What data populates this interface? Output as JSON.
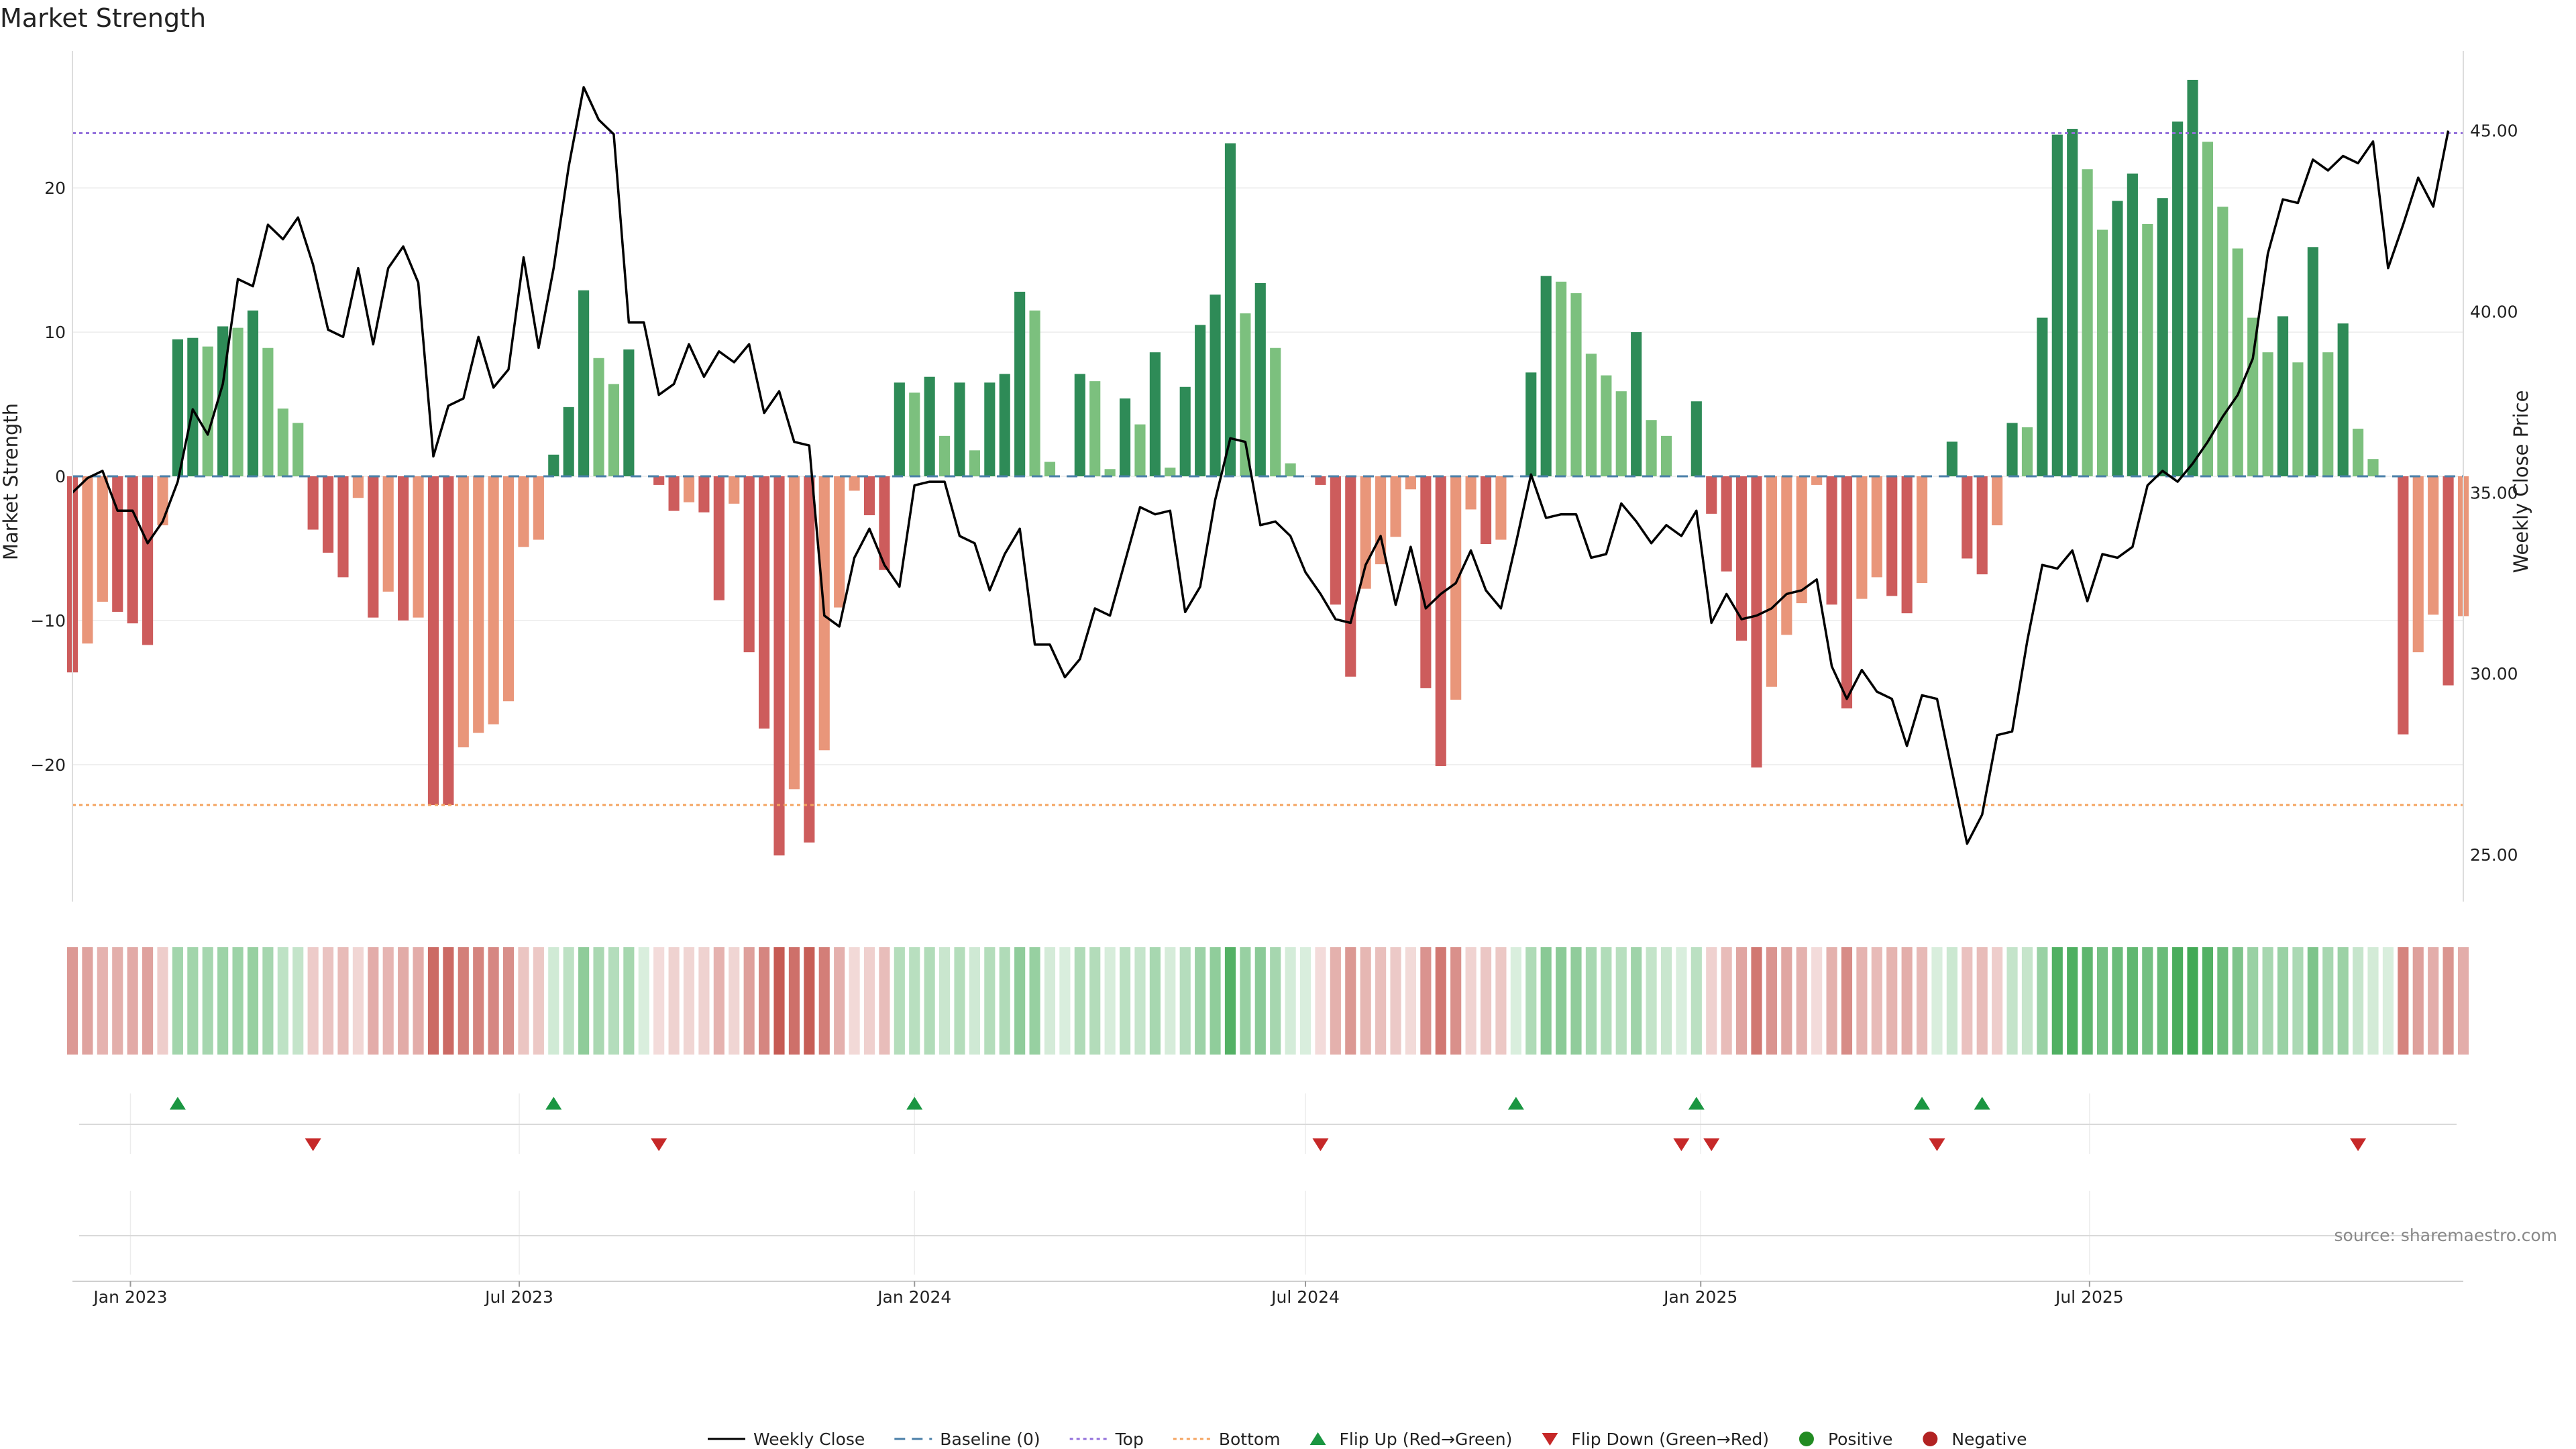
{
  "chart_data": {
    "type": "bar",
    "title": "Market Strength",
    "ylabel_left": "Market Strength",
    "ylabel_right": "Weekly Close Price",
    "source": "source: sharemaestro.com",
    "x_start": "2022-12-05",
    "x_step_days": 7,
    "ylim_left": [
      -29.5,
      29.5
    ],
    "ylim_right": [
      23.7,
      47.2
    ],
    "yticks_left": [
      {
        "value": 20,
        "label": "20"
      },
      {
        "value": 10,
        "label": "10"
      },
      {
        "value": 0,
        "label": "0"
      },
      {
        "value": -10,
        "label": "−10"
      },
      {
        "value": -20,
        "label": "−20"
      }
    ],
    "yticks_right": [
      {
        "value": 45,
        "label": "45.00"
      },
      {
        "value": 40,
        "label": "40.00"
      },
      {
        "value": 35,
        "label": "35.00"
      },
      {
        "value": 30,
        "label": "30.00"
      },
      {
        "value": 25,
        "label": "25.00"
      }
    ],
    "xticks": [
      {
        "date": "2023-01-01",
        "label": "Jan 2023"
      },
      {
        "date": "2023-07-01",
        "label": "Jul 2023"
      },
      {
        "date": "2024-01-01",
        "label": "Jan 2024"
      },
      {
        "date": "2024-07-01",
        "label": "Jul 2024"
      },
      {
        "date": "2025-01-01",
        "label": "Jan 2025"
      },
      {
        "date": "2025-07-01",
        "label": "Jul 2025"
      }
    ],
    "top_threshold": 23.8,
    "bottom_threshold": -22.8,
    "strength": [
      -13.6,
      -11.6,
      -8.7,
      -9.4,
      -10.2,
      -11.7,
      -3.4,
      9.5,
      9.6,
      9.0,
      10.4,
      10.3,
      11.5,
      8.9,
      4.7,
      3.7,
      -3.7,
      -5.3,
      -7.0,
      -1.5,
      -9.8,
      -8.0,
      -10.0,
      -9.8,
      -22.8,
      -22.8,
      -18.8,
      -17.8,
      -17.2,
      -15.6,
      -4.9,
      -4.4,
      1.5,
      4.8,
      12.9,
      8.2,
      6.4,
      8.8,
      0.0,
      -0.6,
      -2.4,
      -1.8,
      -2.5,
      -8.6,
      -1.9,
      -12.2,
      -17.5,
      -26.3,
      -21.7,
      -25.4,
      -19.0,
      -9.1,
      -1.0,
      -2.7,
      -6.5,
      6.5,
      5.8,
      6.9,
      2.8,
      6.5,
      1.8,
      6.5,
      7.1,
      12.8,
      11.5,
      1.0,
      0.0,
      7.1,
      6.6,
      0.5,
      5.4,
      3.6,
      8.6,
      0.6,
      6.2,
      10.5,
      12.6,
      23.1,
      11.3,
      13.4,
      8.9,
      0.9,
      0.0,
      -0.6,
      -8.9,
      -13.9,
      -7.8,
      -6.1,
      -4.2,
      -0.9,
      -14.7,
      -20.1,
      -15.5,
      -2.3,
      -4.7,
      -4.4,
      0.0,
      7.2,
      13.9,
      13.5,
      12.7,
      8.5,
      7.0,
      5.9,
      10.0,
      3.9,
      2.8,
      0.0,
      5.2,
      -2.6,
      -6.6,
      -11.4,
      -20.2,
      -14.6,
      -11.0,
      -8.8,
      -0.6,
      -8.9,
      -16.1,
      -8.5,
      -7.0,
      -8.3,
      -9.5,
      -7.4,
      0.0,
      2.4,
      -5.7,
      -6.8,
      -3.4,
      3.7,
      3.4,
      11.0,
      23.7,
      24.1,
      21.3,
      17.1,
      19.1,
      21.0,
      17.5,
      19.3,
      24.6,
      27.5,
      23.2,
      18.7,
      15.8,
      11.0,
      8.6,
      11.1,
      7.9,
      15.9,
      8.6,
      10.6,
      3.3,
      1.2,
      0.0,
      -17.9,
      -12.2,
      -9.6,
      -14.5,
      -9.7
    ],
    "weekly_close": [
      35.0,
      35.4,
      35.6,
      34.5,
      34.5,
      33.6,
      34.2,
      35.3,
      37.3,
      36.6,
      38.0,
      40.9,
      40.7,
      42.4,
      42.0,
      42.6,
      41.3,
      39.5,
      39.3,
      41.2,
      39.1,
      41.2,
      41.8,
      40.8,
      36.0,
      37.4,
      37.6,
      39.3,
      37.9,
      38.4,
      41.5,
      39.0,
      41.2,
      44.0,
      46.2,
      45.3,
      44.9,
      39.7,
      39.7,
      37.7,
      38.0,
      39.1,
      38.2,
      38.9,
      38.6,
      39.1,
      37.2,
      37.8,
      36.4,
      36.3,
      31.6,
      31.3,
      33.2,
      34.0,
      33.0,
      32.4,
      35.2,
      35.3,
      35.3,
      33.8,
      33.6,
      32.3,
      33.3,
      34.0,
      30.8,
      30.8,
      29.9,
      30.4,
      31.8,
      31.6,
      33.1,
      34.6,
      34.4,
      34.5,
      31.7,
      32.4,
      34.8,
      36.5,
      36.4,
      34.1,
      34.2,
      33.8,
      32.8,
      32.2,
      31.5,
      31.4,
      33.0,
      33.8,
      31.9,
      33.5,
      31.8,
      32.2,
      32.5,
      33.4,
      32.3,
      31.8,
      33.6,
      35.5,
      34.3,
      34.4,
      34.4,
      33.2,
      33.3,
      34.7,
      34.2,
      33.6,
      34.1,
      33.8,
      34.5,
      31.4,
      32.2,
      31.5,
      31.6,
      31.8,
      32.2,
      32.3,
      32.6,
      30.2,
      29.3,
      30.1,
      29.5,
      29.3,
      28.0,
      29.4,
      29.3,
      27.3,
      25.3,
      26.1,
      28.3,
      28.4,
      30.9,
      33.0,
      32.9,
      33.4,
      32.0,
      33.3,
      33.2,
      33.5,
      35.2,
      35.6,
      35.3,
      35.8,
      36.4,
      37.1,
      37.7,
      38.7,
      41.6,
      43.1,
      43.0,
      44.2,
      43.9,
      44.3,
      44.1,
      44.7,
      41.2,
      42.4,
      43.7,
      42.9,
      45.0
    ],
    "flip_up_index": [
      7,
      32,
      56,
      96,
      108,
      123,
      127
    ],
    "flip_down_index": [
      16,
      39,
      83,
      107,
      109,
      124,
      152
    ],
    "colors": {
      "pos_dark": "#2e8b57",
      "pos_light": "#7cc07e",
      "neg_dark": "#cd5c5c",
      "neg_light": "#e9967a",
      "line": "#000000",
      "baseline": "#4a7fa8",
      "top": "#9370db",
      "bottom": "#f4a460",
      "flip_up": "#1a9641",
      "flip_down": "#c62828",
      "positive_marker": "#228b22",
      "negative_marker": "#b22222"
    },
    "legend": [
      {
        "label": "Weekly Close",
        "kind": "line-solid",
        "color": "#000000"
      },
      {
        "label": "Baseline (0)",
        "kind": "line-dash",
        "color": "#4a7fa8"
      },
      {
        "label": "Top",
        "kind": "line-dot",
        "color": "#9370db"
      },
      {
        "label": "Bottom",
        "kind": "line-dot",
        "color": "#f4a460"
      },
      {
        "label": "Flip Up (Red→Green)",
        "kind": "tri-up",
        "color": "#1a9641"
      },
      {
        "label": "Flip Down (Green→Red)",
        "kind": "tri-down",
        "color": "#c62828"
      },
      {
        "label": "Positive",
        "kind": "dot",
        "color": "#228b22"
      },
      {
        "label": "Negative",
        "kind": "dot",
        "color": "#b22222"
      }
    ],
    "legend_position": "bottom"
  }
}
